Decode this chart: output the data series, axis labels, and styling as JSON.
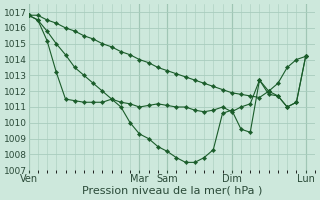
{
  "background_color": "#cde8dc",
  "grid_color": "#a8ccbd",
  "line_color": "#1a5c2a",
  "marker_color": "#1a5c2a",
  "xlabel": "Pression niveau de la mer( hPa )",
  "xlabel_fontsize": 8,
  "ylim": [
    1007,
    1017.5
  ],
  "ytick_fontsize": 6.5,
  "xtick_fontsize": 7,
  "yticks": [
    1007,
    1008,
    1009,
    1010,
    1011,
    1012,
    1013,
    1014,
    1015,
    1016,
    1017
  ],
  "xtick_labels": [
    "Ven",
    "Mar",
    "Sam",
    "Dim",
    "Lun"
  ],
  "xtick_positions": [
    0,
    12,
    15,
    22,
    30
  ],
  "xlim": [
    0,
    31
  ],
  "series": [
    {
      "x": [
        0,
        1,
        2,
        3,
        4,
        5,
        6,
        7,
        8,
        9,
        10,
        11,
        12,
        13,
        14,
        15,
        16,
        17,
        18,
        19,
        20,
        21,
        22,
        23,
        24,
        25,
        26,
        27,
        28,
        29,
        30
      ],
      "y": [
        1016.8,
        1016.8,
        1016.5,
        1016.3,
        1016.0,
        1015.8,
        1015.5,
        1015.3,
        1015.0,
        1014.8,
        1014.5,
        1014.3,
        1014.0,
        1013.8,
        1013.5,
        1013.3,
        1013.1,
        1012.9,
        1012.7,
        1012.5,
        1012.3,
        1012.1,
        1011.9,
        1011.8,
        1011.7,
        1011.6,
        1012.0,
        1012.5,
        1013.5,
        1014.0,
        1014.2
      ]
    },
    {
      "x": [
        0,
        1,
        2,
        3,
        4,
        5,
        6,
        7,
        8,
        9,
        10,
        11,
        12,
        13,
        14,
        15,
        16,
        17,
        18,
        19,
        20,
        21,
        22,
        23,
        24,
        25,
        26,
        27,
        28,
        29,
        30
      ],
      "y": [
        1016.8,
        1016.5,
        1015.8,
        1015.0,
        1014.3,
        1013.5,
        1013.0,
        1012.5,
        1012.0,
        1011.5,
        1011.3,
        1011.2,
        1011.0,
        1011.1,
        1011.2,
        1011.1,
        1011.0,
        1011.0,
        1010.8,
        1010.7,
        1010.8,
        1011.0,
        1010.7,
        1011.0,
        1011.2,
        1012.7,
        1012.0,
        1011.7,
        1011.0,
        1011.3,
        1014.2
      ]
    },
    {
      "x": [
        0,
        1,
        2,
        3,
        4,
        5,
        6,
        7,
        8,
        9,
        10,
        11,
        12,
        13,
        14,
        15,
        16,
        17,
        18,
        19,
        20,
        21,
        22,
        23,
        24,
        25,
        26,
        27,
        28,
        29,
        30
      ],
      "y": [
        1016.8,
        1016.5,
        1015.2,
        1013.2,
        1011.5,
        1011.4,
        1011.3,
        1011.3,
        1011.3,
        1011.5,
        1011.0,
        1010.0,
        1009.3,
        1009.0,
        1008.5,
        1008.2,
        1007.8,
        1007.5,
        1007.5,
        1007.8,
        1008.3,
        1010.6,
        1010.8,
        1009.6,
        1009.4,
        1012.7,
        1011.8,
        1011.7,
        1011.0,
        1011.3,
        1014.2
      ]
    }
  ]
}
